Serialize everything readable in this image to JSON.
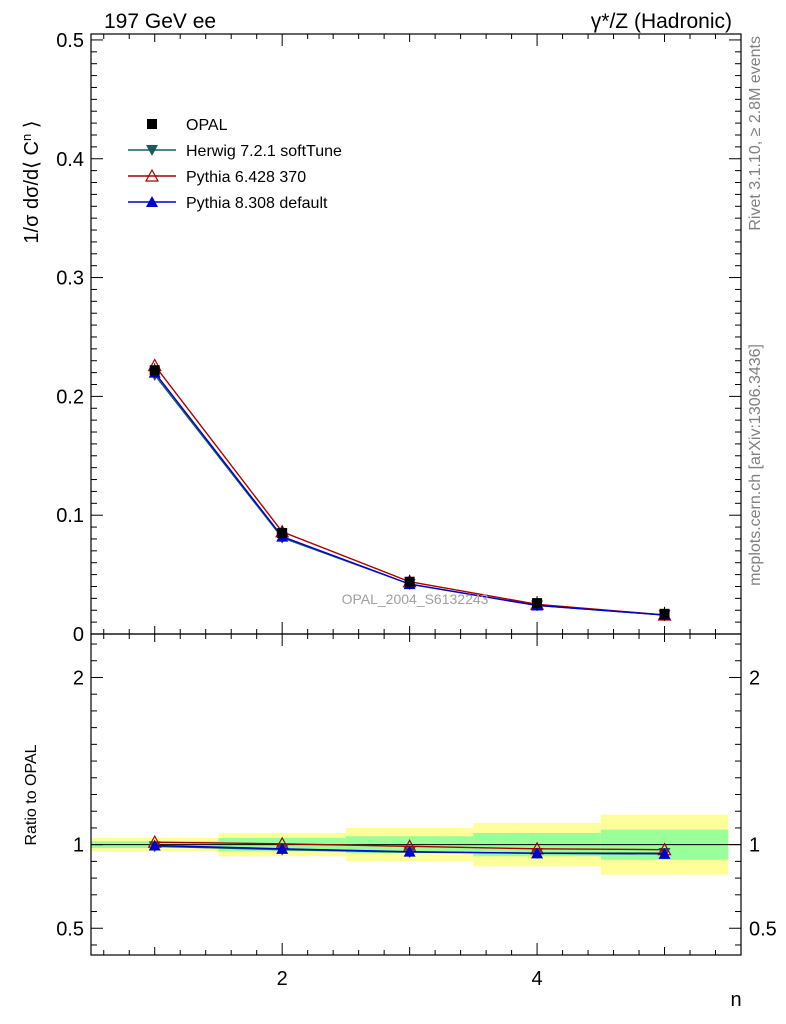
{
  "header": {
    "left_label": "197 GeV ee",
    "right_label": "γ*/Z (Hadronic)"
  },
  "side_labels": {
    "rivet": "Rivet 3.1.10, ≥ 2.8M events",
    "mcplots": "mcplots.cern.ch [arXiv:1306.3436]"
  },
  "watermark": "OPAL_2004_S6132243",
  "chart_data": [
    {
      "panel": "main",
      "type": "line",
      "ylabel": "1/σ dσ/d⟨ C^n ⟩",
      "xlabel": "n",
      "xlim": [
        0.5,
        5.6
      ],
      "ylim": [
        0,
        0.505
      ],
      "x": [
        1,
        2,
        3,
        4,
        5
      ],
      "xticks": [
        2,
        4
      ],
      "yticks": [
        {
          "value": 0,
          "label": "0"
        },
        {
          "value": 0.1,
          "label": "0.1"
        },
        {
          "value": 0.2,
          "label": "0.2"
        },
        {
          "value": 0.3,
          "label": "0.3"
        },
        {
          "value": 0.4,
          "label": "0.4"
        },
        {
          "value": 0.5,
          "label": "0.5"
        }
      ],
      "legend_placement": "top-left",
      "series": [
        {
          "name": "OPAL",
          "role": "data",
          "marker": "square",
          "color": "#000000",
          "values": [
            0.222,
            0.085,
            0.044,
            0.026,
            0.017
          ]
        },
        {
          "name": "Herwig 7.2.1 softTune",
          "role": "mc",
          "marker": "triangle-down",
          "color": "#1a5c5c",
          "values": [
            0.218,
            0.081,
            0.042,
            0.024,
            0.016
          ]
        },
        {
          "name": "Pythia 6.428 370",
          "role": "mc",
          "marker": "triangle-up-open",
          "color": "#aa0000",
          "values": [
            0.226,
            0.086,
            0.044,
            0.025,
            0.016
          ]
        },
        {
          "name": "Pythia 8.308 default",
          "role": "mc",
          "marker": "triangle-up",
          "color": "#0000cc",
          "values": [
            0.22,
            0.082,
            0.042,
            0.024,
            0.016
          ]
        }
      ]
    },
    {
      "panel": "ratio",
      "type": "line",
      "ylabel": "Ratio to OPAL",
      "xlabel": "n",
      "xlim": [
        0.5,
        5.6
      ],
      "ylim": [
        0.34,
        2.26
      ],
      "xticks": [
        {
          "value": 2,
          "label": "2"
        },
        {
          "value": 4,
          "label": "4"
        }
      ],
      "yticks": [
        {
          "value": 0.5,
          "label": "0.5"
        },
        {
          "value": 1,
          "label": "1"
        },
        {
          "value": 2,
          "label": "2"
        }
      ],
      "bins": [
        {
          "lo": 0.5,
          "hi": 1.5,
          "green": [
            0.98,
            1.02
          ],
          "yellow": [
            0.96,
            1.04
          ]
        },
        {
          "lo": 1.5,
          "hi": 2.5,
          "green": [
            0.96,
            1.04
          ],
          "yellow": [
            0.93,
            1.07
          ]
        },
        {
          "lo": 2.5,
          "hi": 3.5,
          "green": [
            0.95,
            1.05
          ],
          "yellow": [
            0.9,
            1.1
          ]
        },
        {
          "lo": 3.5,
          "hi": 4.5,
          "green": [
            0.93,
            1.07
          ],
          "yellow": [
            0.87,
            1.13
          ]
        },
        {
          "lo": 4.5,
          "hi": 5.5,
          "green": [
            0.91,
            1.09
          ],
          "yellow": [
            0.82,
            1.18
          ]
        }
      ],
      "x": [
        1,
        2,
        3,
        4,
        5
      ],
      "series": [
        {
          "name": "Herwig 7.2.1 softTune",
          "marker": "triangle-down",
          "color": "#1a5c5c",
          "values": [
            0.99,
            0.97,
            0.955,
            0.95,
            0.95
          ]
        },
        {
          "name": "Pythia 6.428 370",
          "marker": "triangle-up-open",
          "color": "#aa0000",
          "values": [
            1.015,
            1.005,
            0.99,
            0.975,
            0.97
          ]
        },
        {
          "name": "Pythia 8.308 default",
          "marker": "triangle-up",
          "color": "#0000cc",
          "values": [
            0.995,
            0.975,
            0.958,
            0.948,
            0.945
          ]
        }
      ]
    }
  ]
}
